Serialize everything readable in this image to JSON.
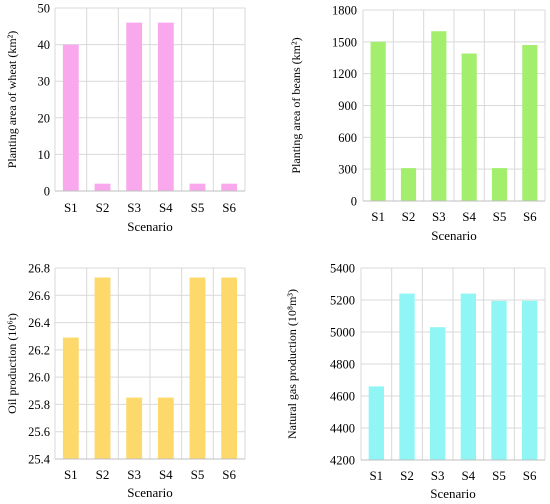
{
  "chart_data": [
    {
      "type": "bar",
      "categories": [
        "S1",
        "S2",
        "S3",
        "S4",
        "S5",
        "S6"
      ],
      "values": [
        40,
        2,
        46,
        46,
        2,
        2
      ],
      "ylabel": "Planting area of wheat (km²)",
      "xlabel": "Scenario",
      "ylim": [
        0,
        50
      ],
      "yticks": [
        0,
        10,
        20,
        30,
        40,
        50
      ],
      "color": "#f9a8ee",
      "grid": true
    },
    {
      "type": "bar",
      "categories": [
        "S1",
        "S2",
        "S3",
        "S4",
        "S5",
        "S6"
      ],
      "values": [
        1500,
        310,
        1600,
        1390,
        310,
        1470
      ],
      "ylabel": "Planting area of beans (km²)",
      "xlabel": "Scenario",
      "ylim": [
        0,
        1800
      ],
      "yticks": [
        0,
        300,
        600,
        900,
        1200,
        1500,
        1800
      ],
      "color": "#a4ee6e",
      "grid": true
    },
    {
      "type": "bar",
      "categories": [
        "S1",
        "S2",
        "S3",
        "S4",
        "S5",
        "S6"
      ],
      "values": [
        26.29,
        26.73,
        25.85,
        25.85,
        26.73,
        26.73
      ],
      "ylabel": "Oil production (10⁶t)",
      "xlabel": "Scenario",
      "ylim": [
        25.4,
        26.8
      ],
      "yticks": [
        "25.4",
        "25.6",
        "25.8",
        "26.0",
        "26.2",
        "26.4",
        "26.6",
        "26.8"
      ],
      "color": "#fdd86a",
      "grid": true
    },
    {
      "type": "bar",
      "categories": [
        "S1",
        "S2",
        "S3",
        "S4",
        "S5",
        "S6"
      ],
      "values": [
        4660,
        5240,
        5030,
        5240,
        5195,
        5195
      ],
      "ylabel": "Natural gas production (10⁸m³)",
      "xlabel": "Scenario",
      "ylim": [
        4200,
        5400
      ],
      "yticks": [
        4200,
        4400,
        4600,
        4800,
        5000,
        5200,
        5400
      ],
      "color": "#8ff5f5",
      "grid": true
    }
  ]
}
